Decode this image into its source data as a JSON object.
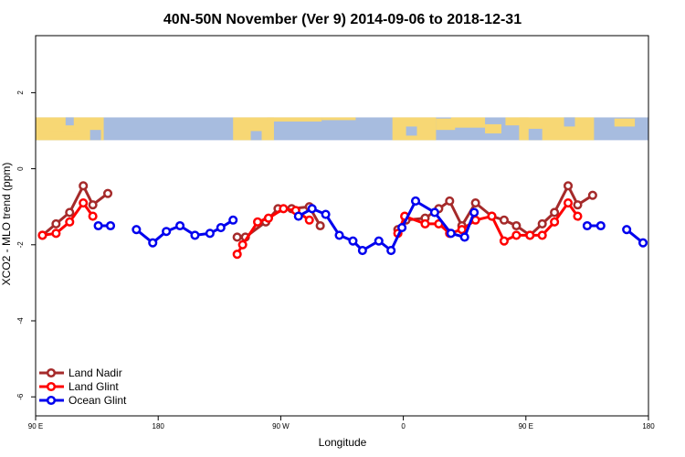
{
  "chart_data": {
    "type": "line",
    "title": "40N-50N November (Ver 9)   2014-09-06 to 2018-12-31",
    "xlabel": "Longitude",
    "ylabel": "XCO2 - MLO trend (ppm)",
    "xlim": [
      90,
      540
    ],
    "ylim": [
      -6.5,
      3.5
    ],
    "x_ticks": [
      {
        "value": 90,
        "label": "90 E"
      },
      {
        "value": 180,
        "label": "180"
      },
      {
        "value": 270,
        "label": "90 W"
      },
      {
        "value": 360,
        "label": "0"
      },
      {
        "value": 450,
        "label": "90 E"
      },
      {
        "value": 540,
        "label": "180"
      }
    ],
    "y_ticks": [
      {
        "value": -6,
        "label": "-6"
      },
      {
        "value": -4,
        "label": "-4"
      },
      {
        "value": -2,
        "label": "-2"
      },
      {
        "value": 0,
        "label": "0"
      },
      {
        "value": 2,
        "label": "2"
      }
    ],
    "legend_position": "bottom-left",
    "map_band": {
      "y_top": 1.35,
      "y_bottom": 0.75,
      "land_color": "#f7d774",
      "ocean_color": "#a7bcdf"
    },
    "series": [
      {
        "name": "Land Nadir",
        "color": "#a52a2a",
        "segments": [
          [
            [
              95,
              -1.75
            ],
            [
              105,
              -1.45
            ],
            [
              115,
              -1.15
            ],
            [
              125,
              -0.45
            ],
            [
              132,
              -0.95
            ],
            [
              143,
              -0.65
            ]
          ],
          [
            [
              238,
              -1.8
            ],
            [
              244,
              -1.8
            ],
            [
              259,
              -1.4
            ],
            [
              268,
              -1.05
            ],
            [
              278,
              -1.05
            ],
            [
              291,
              -1.0
            ],
            [
              299,
              -1.5
            ]
          ],
          [
            [
              356,
              -1.6
            ],
            [
              362,
              -1.35
            ],
            [
              376,
              -1.3
            ],
            [
              386,
              -1.05
            ],
            [
              394,
              -0.85
            ],
            [
              403,
              -1.5
            ],
            [
              413,
              -0.9
            ],
            [
              425,
              -1.25
            ],
            [
              434,
              -1.35
            ],
            [
              443,
              -1.5
            ],
            [
              453,
              -1.75
            ],
            [
              462,
              -1.45
            ],
            [
              471,
              -1.15
            ],
            [
              481,
              -0.45
            ],
            [
              488,
              -0.95
            ],
            [
              499,
              -0.7
            ]
          ]
        ]
      },
      {
        "name": "Land Glint",
        "color": "#ff0000",
        "segments": [
          [
            [
              95,
              -1.75
            ],
            [
              105,
              -1.7
            ],
            [
              115,
              -1.4
            ],
            [
              125,
              -0.9
            ],
            [
              132,
              -1.25
            ]
          ],
          [
            [
              238,
              -2.25
            ],
            [
              242,
              -2.0
            ],
            [
              253,
              -1.4
            ],
            [
              261,
              -1.3
            ],
            [
              272,
              -1.05
            ],
            [
              281,
              -1.1
            ],
            [
              291,
              -1.35
            ]
          ],
          [
            [
              356,
              -1.7
            ],
            [
              361,
              -1.25
            ],
            [
              376,
              -1.45
            ],
            [
              386,
              -1.45
            ],
            [
              394,
              -1.7
            ],
            [
              403,
              -1.6
            ],
            [
              413,
              -1.35
            ],
            [
              425,
              -1.25
            ],
            [
              434,
              -1.9
            ],
            [
              443,
              -1.75
            ],
            [
              453,
              -1.75
            ],
            [
              462,
              -1.75
            ],
            [
              471,
              -1.4
            ],
            [
              481,
              -0.9
            ],
            [
              488,
              -1.25
            ]
          ]
        ]
      },
      {
        "name": "Ocean Glint",
        "color": "#0000ee",
        "segments": [
          [
            [
              136,
              -1.5
            ],
            [
              145,
              -1.5
            ]
          ],
          [
            [
              164,
              -1.6
            ],
            [
              176,
              -1.95
            ],
            [
              186,
              -1.65
            ],
            [
              196,
              -1.5
            ],
            [
              207,
              -1.75
            ],
            [
              218,
              -1.7
            ],
            [
              226,
              -1.55
            ],
            [
              235,
              -1.35
            ]
          ],
          [
            [
              283,
              -1.25
            ],
            [
              293,
              -1.05
            ],
            [
              303,
              -1.2
            ],
            [
              313,
              -1.75
            ],
            [
              323,
              -1.9
            ],
            [
              330,
              -2.15
            ],
            [
              342,
              -1.9
            ],
            [
              351,
              -2.15
            ],
            [
              359,
              -1.55
            ],
            [
              369,
              -0.85
            ],
            [
              383,
              -1.15
            ],
            [
              395,
              -1.7
            ],
            [
              405,
              -1.8
            ],
            [
              412,
              -1.15
            ]
          ],
          [
            [
              495,
              -1.5
            ],
            [
              505,
              -1.5
            ]
          ],
          [
            [
              524,
              -1.6
            ],
            [
              536,
              -1.95
            ]
          ]
        ]
      }
    ]
  }
}
